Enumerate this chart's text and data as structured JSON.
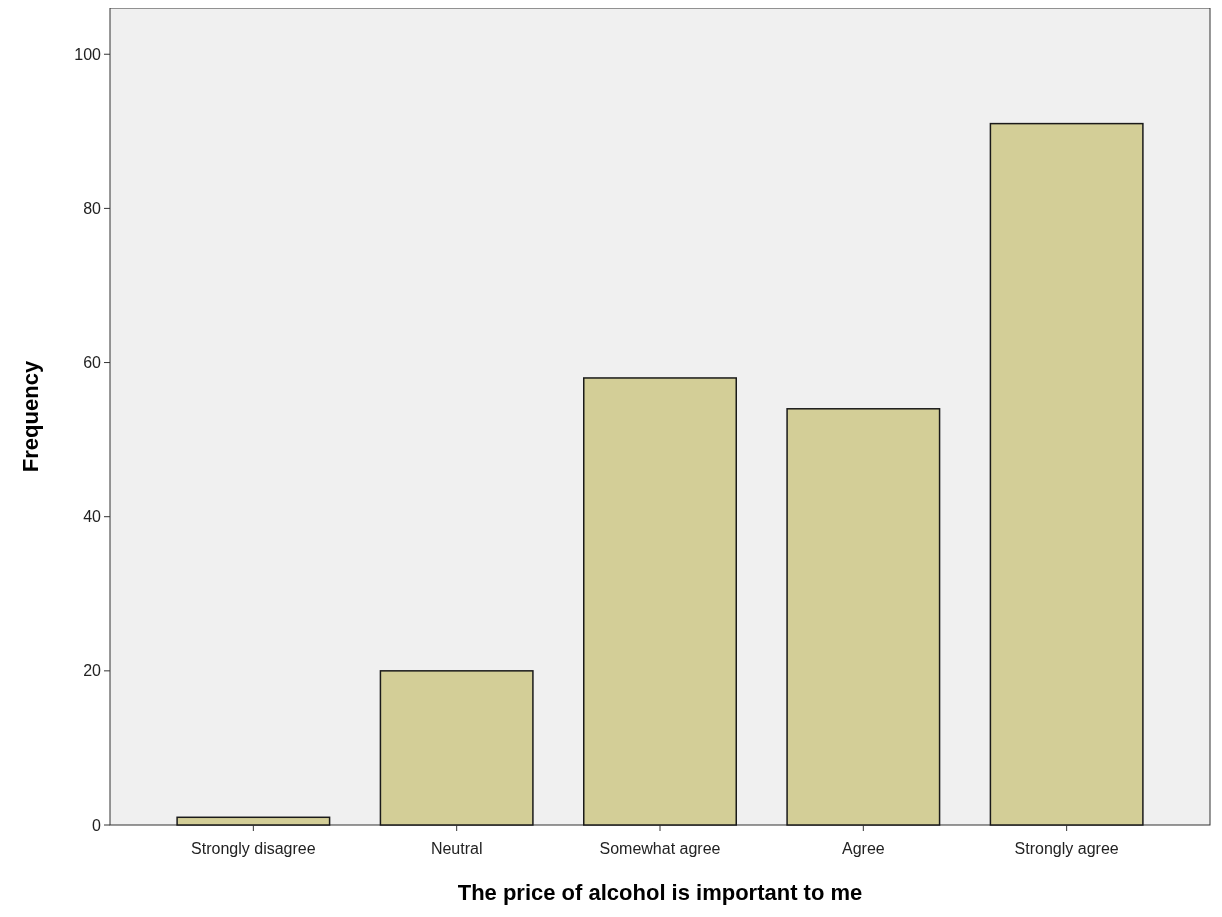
{
  "chart_data": {
    "type": "bar",
    "xlabel": "The price of alcohol is important to me",
    "ylabel": "Frequency",
    "categories": [
      "Strongly disagree",
      "Neutral",
      "Somewhat agree",
      "Agree",
      "Strongly agree"
    ],
    "values": [
      1,
      20,
      58,
      54,
      91
    ],
    "color": "#d3ce97",
    "ylim": [
      0,
      106
    ],
    "yticks": [
      0,
      20,
      40,
      60,
      80,
      100
    ],
    "grid": false
  }
}
